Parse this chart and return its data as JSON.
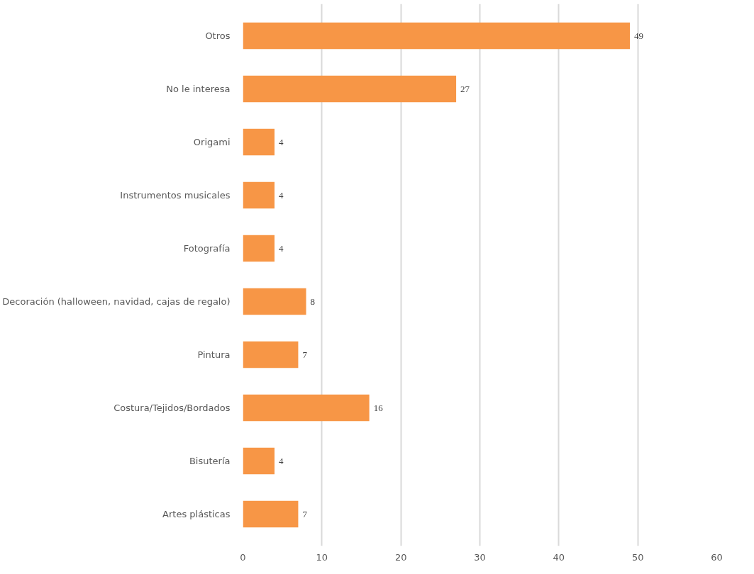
{
  "chart_data": {
    "type": "bar",
    "orientation": "horizontal",
    "categories": [
      "Otros",
      "No le interesa",
      "Origami",
      "Instrumentos musicales",
      "Fotografía",
      "Decoración (halloween, navidad, cajas de regalo)",
      "Pintura",
      "Costura/Tejidos/Bordados",
      "Bisutería",
      "Artes plásticas"
    ],
    "values": [
      49,
      27,
      4,
      4,
      4,
      8,
      7,
      16,
      4,
      7
    ],
    "color": "#f79646",
    "xlim": [
      0,
      60
    ],
    "xticks": [
      0,
      10,
      20,
      30,
      40,
      50,
      60
    ],
    "grid": "x",
    "data_labels": true
  }
}
